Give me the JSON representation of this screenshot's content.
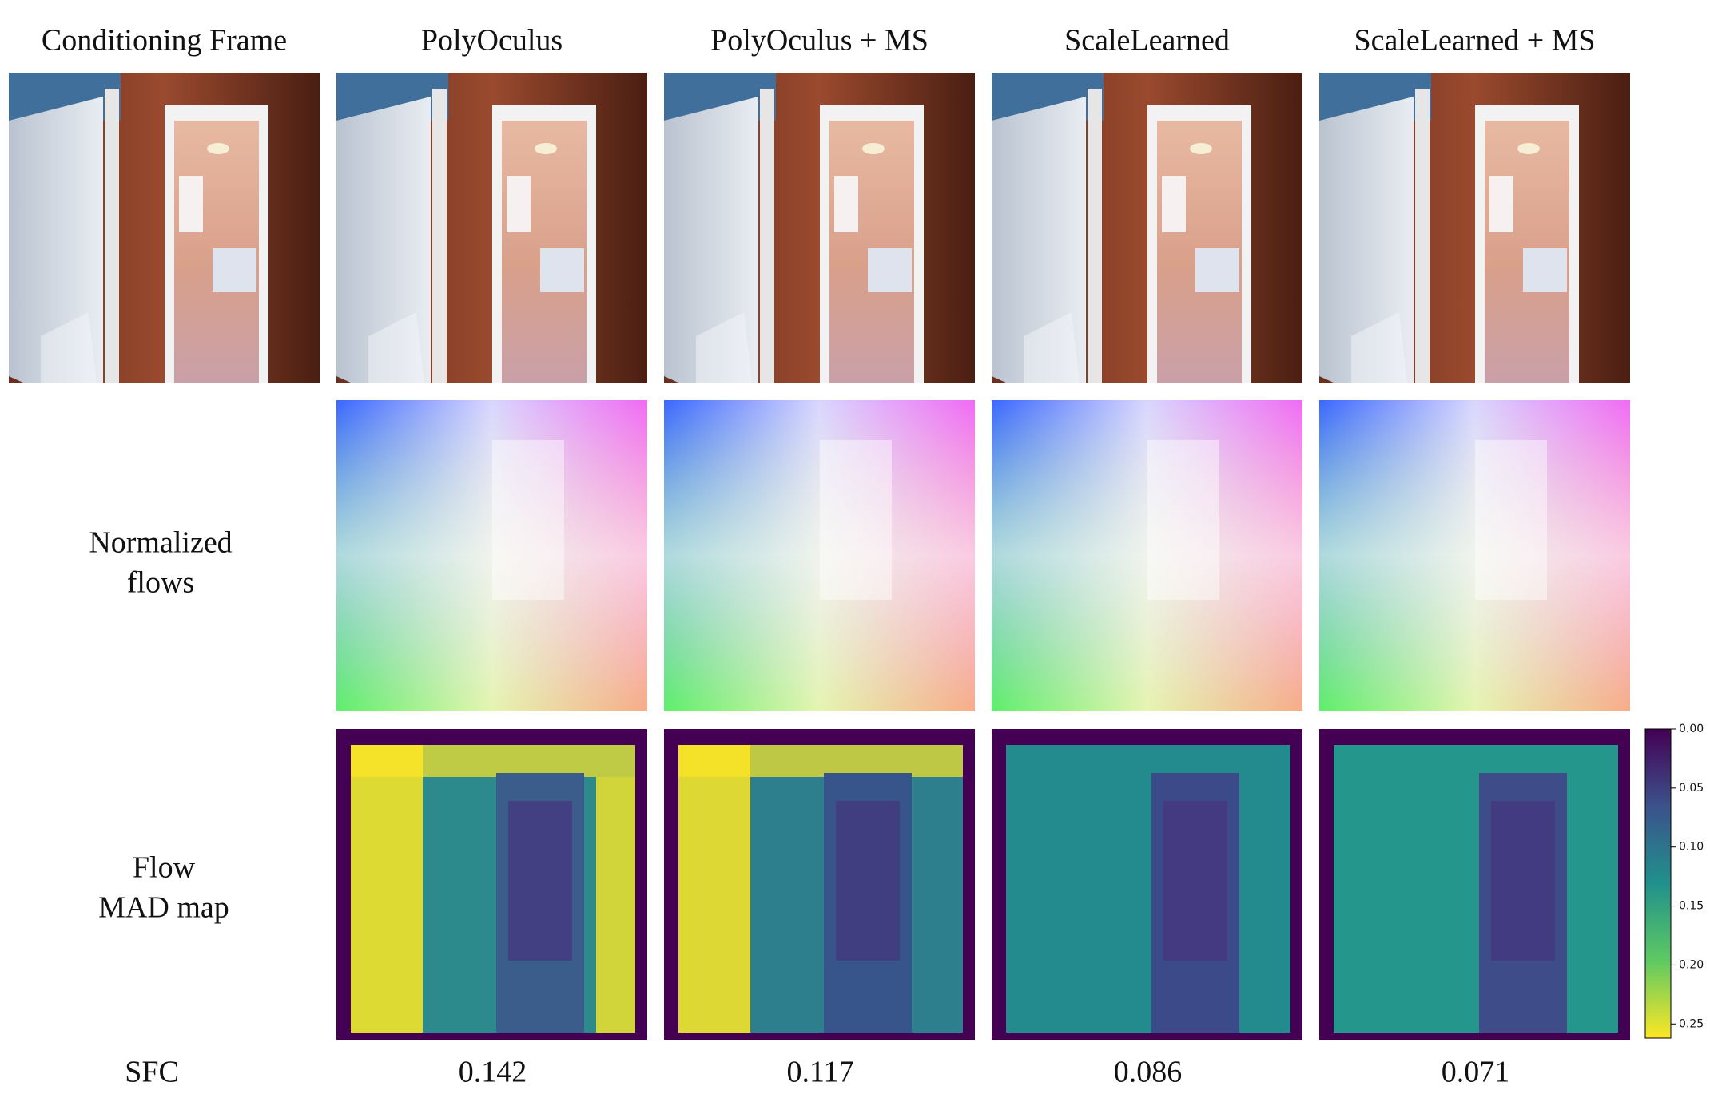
{
  "headers": [
    "Conditioning Frame",
    "PolyOculus",
    "PolyOculus + MS",
    "ScaleLearned",
    "ScaleLearned + MS"
  ],
  "rows": [
    {
      "label": [
        "Normalized",
        "flows"
      ]
    },
    {
      "label": [
        "Flow",
        "MAD map"
      ]
    }
  ],
  "sfc": {
    "label": "SFC",
    "values": [
      0.142,
      0.117,
      0.086,
      0.071
    ]
  },
  "colorbar": {
    "lim": [
      0,
      0.262
    ],
    "ticks": [
      {
        "value": 0,
        "label": "0.00"
      },
      {
        "value": 0.05,
        "label": "0.05"
      },
      {
        "value": 0.1,
        "label": "0.10"
      },
      {
        "value": 0.15,
        "label": "0.15"
      },
      {
        "value": 0.2,
        "label": "0.20"
      },
      {
        "value": 0.25,
        "label": "0.25"
      }
    ]
  }
}
